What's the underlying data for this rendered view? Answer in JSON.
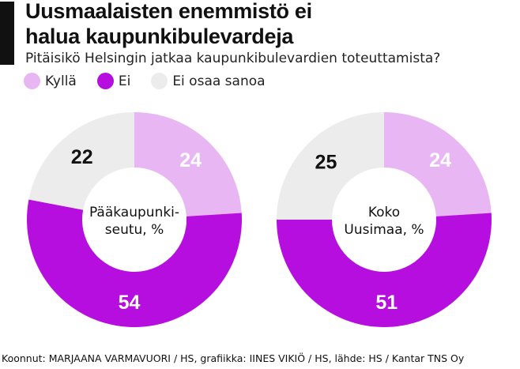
{
  "title_lines": [
    "Uusmaalaisten enemmistö ei",
    "halua kaupunkibulevardeja"
  ],
  "question": "Pitäisikö Helsingin jatkaa kaupunkibulevardien toteuttamista?",
  "legend": [
    {
      "label": "Kyllä",
      "color": "#e9b6f4"
    },
    {
      "label": "Ei",
      "color": "#b70ee0"
    },
    {
      "label": "Ei osaa sanoa",
      "color": "#ececec"
    }
  ],
  "chart_data": [
    {
      "type": "pie",
      "center_label_lines": [
        "Pääkaupunki-",
        "seutu, %"
      ],
      "slices": [
        {
          "name": "Kyllä",
          "value": 24,
          "color": "#e9b6f4"
        },
        {
          "name": "Ei",
          "value": 54,
          "color": "#b70ee0"
        },
        {
          "name": "Ei osaa sanoa",
          "value": 22,
          "color": "#ececec"
        }
      ]
    },
    {
      "type": "pie",
      "center_label_lines": [
        "Koko",
        "Uusimaa, %"
      ],
      "slices": [
        {
          "name": "Kyllä",
          "value": 24,
          "color": "#e9b6f4"
        },
        {
          "name": "Ei",
          "value": 51,
          "color": "#b70ee0"
        },
        {
          "name": "Ei osaa sanoa",
          "value": 25,
          "color": "#ececec"
        }
      ]
    }
  ],
  "footer": "Koonnut: MARJAANA VARMAVUORI / HS, grafiikka: IINES VIKIÖ / HS, lähde: HS / Kantar TNS Oy"
}
